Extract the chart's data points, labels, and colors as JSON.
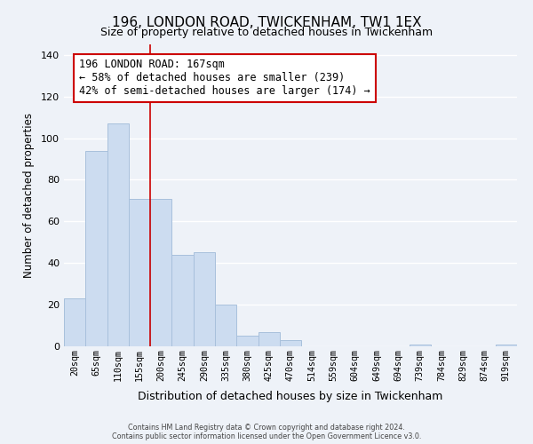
{
  "title": "196, LONDON ROAD, TWICKENHAM, TW1 1EX",
  "subtitle": "Size of property relative to detached houses in Twickenham",
  "xlabel": "Distribution of detached houses by size in Twickenham",
  "ylabel": "Number of detached properties",
  "bar_labels": [
    "20sqm",
    "65sqm",
    "110sqm",
    "155sqm",
    "200sqm",
    "245sqm",
    "290sqm",
    "335sqm",
    "380sqm",
    "425sqm",
    "470sqm",
    "514sqm",
    "559sqm",
    "604sqm",
    "649sqm",
    "694sqm",
    "739sqm",
    "784sqm",
    "829sqm",
    "874sqm",
    "919sqm"
  ],
  "bar_values": [
    23,
    94,
    107,
    71,
    71,
    44,
    45,
    20,
    5,
    7,
    3,
    0,
    0,
    0,
    0,
    0,
    1,
    0,
    0,
    0,
    1
  ],
  "bar_color": "#ccdcf0",
  "bar_edge_color": "#a8c0dc",
  "vline_x": 3.5,
  "vline_color": "#cc0000",
  "ylim": [
    0,
    145
  ],
  "yticks": [
    0,
    20,
    40,
    60,
    80,
    100,
    120,
    140
  ],
  "annotation_title": "196 LONDON ROAD: 167sqm",
  "annotation_line1": "← 58% of detached houses are smaller (239)",
  "annotation_line2": "42% of semi-detached houses are larger (174) →",
  "annotation_box_color": "#ffffff",
  "annotation_box_edge": "#cc0000",
  "footer_line1": "Contains HM Land Registry data © Crown copyright and database right 2024.",
  "footer_line2": "Contains public sector information licensed under the Open Government Licence v3.0.",
  "background_color": "#eef2f8",
  "grid_color": "#ffffff",
  "title_fontsize": 11,
  "subtitle_fontsize": 9
}
